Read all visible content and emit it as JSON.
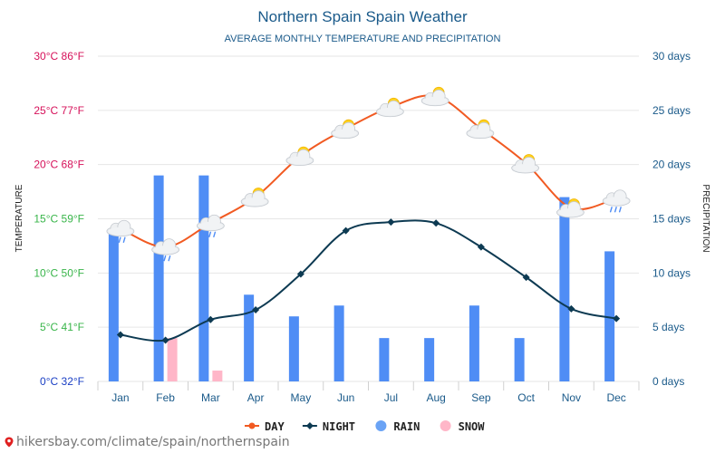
{
  "chart_data": {
    "type": "line+bar",
    "title": "Northern Spain Spain Weather",
    "subtitle": "AVERAGE MONTHLY TEMPERATURE AND PRECIPITATION",
    "ylabel_left": "TEMPERATURE",
    "ylabel_right": "PRECIPITATION",
    "categories": [
      "Jan",
      "Feb",
      "Mar",
      "Apr",
      "May",
      "Jun",
      "Jul",
      "Aug",
      "Sep",
      "Oct",
      "Nov",
      "Dec"
    ],
    "ylim_temp_c": [
      0,
      30
    ],
    "ylim_days": [
      0,
      30
    ],
    "left_ticks": [
      {
        "c": 0,
        "label": "0°C 32°F",
        "color": "#1a3fc4"
      },
      {
        "c": 5,
        "label": "5°C 41°F",
        "color": "#39b54a"
      },
      {
        "c": 10,
        "label": "10°C 50°F",
        "color": "#39b54a"
      },
      {
        "c": 15,
        "label": "15°C 59°F",
        "color": "#39b54a"
      },
      {
        "c": 20,
        "label": "20°C 68°F",
        "color": "#d6115a"
      },
      {
        "c": 25,
        "label": "25°C 77°F",
        "color": "#d6115a"
      },
      {
        "c": 30,
        "label": "30°C 86°F",
        "color": "#d6115a"
      }
    ],
    "right_ticks": [
      {
        "v": 0,
        "label": "0 days"
      },
      {
        "v": 5,
        "label": "5 days"
      },
      {
        "v": 10,
        "label": "10 days"
      },
      {
        "v": 15,
        "label": "15 days"
      },
      {
        "v": 20,
        "label": "20 days"
      },
      {
        "v": 25,
        "label": "25 days"
      },
      {
        "v": 30,
        "label": "30 days"
      }
    ],
    "series": [
      {
        "name": "DAY",
        "kind": "line",
        "color": "#f15a22",
        "values": [
          14.1,
          12.4,
          14.6,
          17.0,
          20.8,
          23.3,
          25.3,
          26.3,
          23.3,
          20.1,
          16.0,
          16.9
        ]
      },
      {
        "name": "NIGHT",
        "kind": "line",
        "color": "#0d3a52",
        "values": [
          4.3,
          3.8,
          5.7,
          6.6,
          9.9,
          13.9,
          14.7,
          14.6,
          12.4,
          9.6,
          6.7,
          5.8
        ]
      },
      {
        "name": "RAIN",
        "kind": "bar",
        "color": "#4f8df5",
        "values": [
          14,
          19,
          19,
          8,
          6,
          7,
          4,
          4,
          7,
          4,
          17,
          12
        ]
      },
      {
        "name": "SNOW",
        "kind": "bar",
        "color": "#ffb6c8",
        "values": [
          0,
          4,
          1,
          0,
          0,
          0,
          0,
          0,
          0,
          0,
          0,
          0
        ]
      }
    ],
    "weather_icons": [
      "rain-cloud",
      "rain-cloud",
      "rain-cloud",
      "sun-cloud",
      "sun-cloud",
      "sun-cloud",
      "sun-cloud",
      "sun-cloud",
      "sun-cloud",
      "sun-cloud",
      "sun-cloud",
      "rain-cloud"
    ],
    "legend": [
      {
        "name": "DAY",
        "marker": "line-dot",
        "color": "#f15a22"
      },
      {
        "name": "NIGHT",
        "marker": "line-diamond",
        "color": "#0d3a52"
      },
      {
        "name": "RAIN",
        "marker": "dot",
        "color": "#6aa3f5"
      },
      {
        "name": "SNOW",
        "marker": "dot",
        "color": "#ffb6c8"
      }
    ],
    "legend_position": "bottom",
    "grid": true
  },
  "colors": {
    "title": "#1a5a8a",
    "right_axis": "#1a5a8a",
    "axis_title": "#222222",
    "grid": "#e6e6e6"
  },
  "footer": {
    "url": "hikersbay.com/climate/spain/northernspain"
  }
}
